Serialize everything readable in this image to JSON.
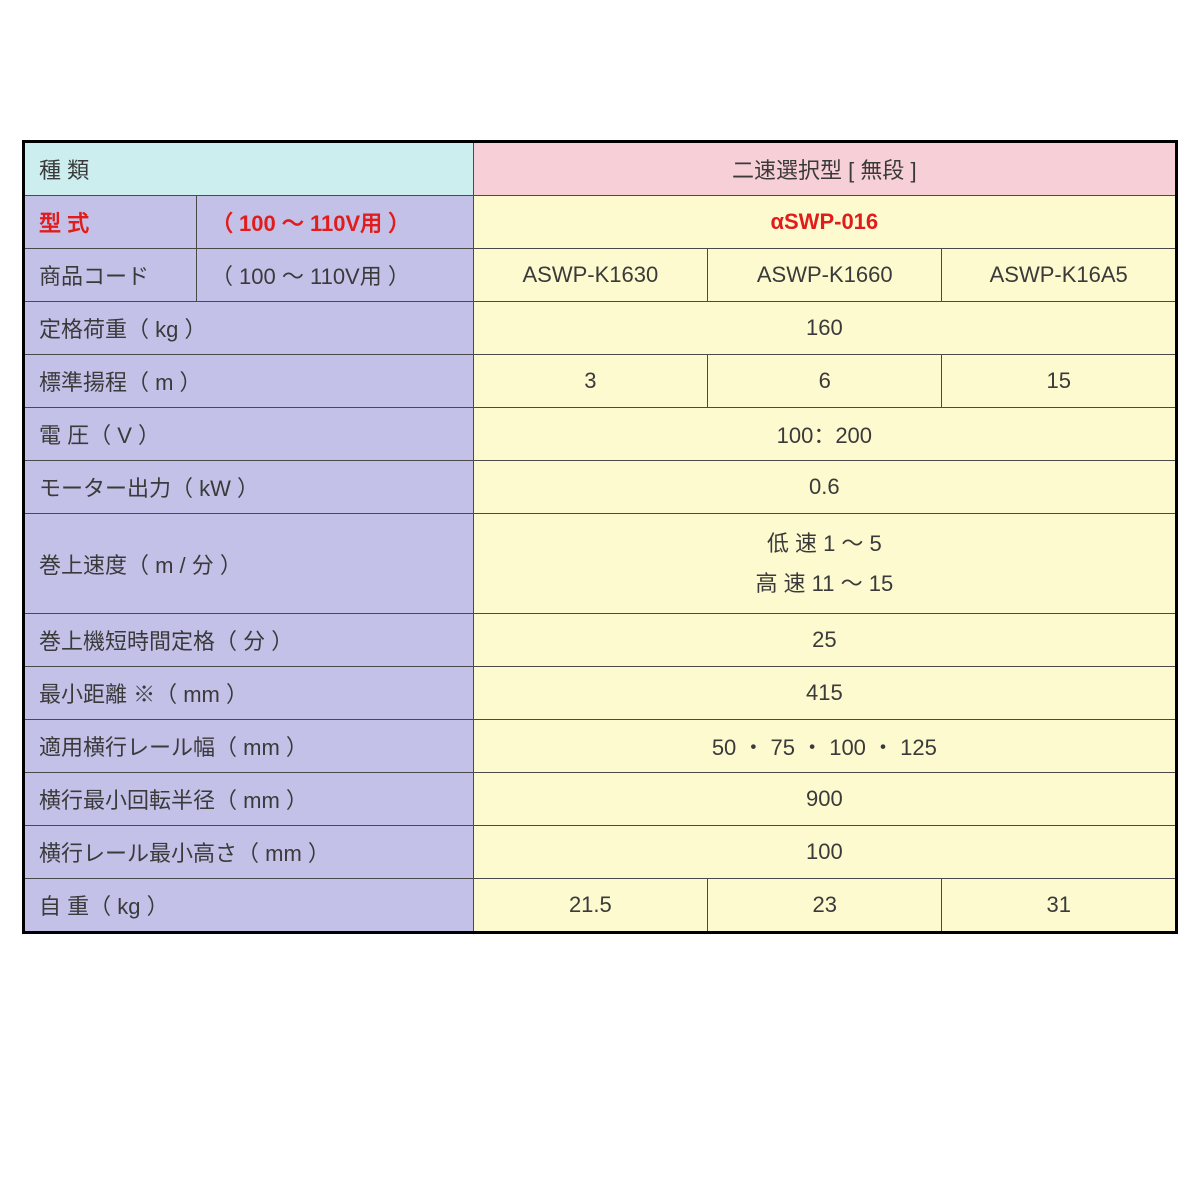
{
  "colors": {
    "hdr_left_bg": "#cdeeee",
    "hdr_right_bg": "#f7cfd7",
    "label_col_bg": "#c4c1e8",
    "value_col_bg": "#fdfacf",
    "red_text": "#e11c1c",
    "border": "#000000",
    "inner_border": "#4a4a4a",
    "text": "#3a3a3a"
  },
  "col_widths_pct": [
    15,
    24,
    20.33,
    20.33,
    20.34
  ],
  "header": {
    "type_label": "種 類",
    "type_value": "二速選択型 [ 無段 ]"
  },
  "model_row": {
    "label": "型 式",
    "note": "（ 100 ～ 110V用 ）",
    "value": "αSWP-016"
  },
  "code_row": {
    "label": "商品コード",
    "note": "（ 100 ～ 110V用 ）",
    "codes": [
      "ASWP-K1630",
      "ASWP-K1660",
      "ASWP-K16A5"
    ]
  },
  "rows": [
    {
      "label": "定格荷重（ kg ）",
      "span": true,
      "value": "160"
    },
    {
      "label": "標準揚程（ m ）",
      "span": false,
      "values": [
        "3",
        "6",
        "15"
      ]
    },
    {
      "label": "電 圧（ V ）",
      "span": true,
      "value": "100：200"
    },
    {
      "label": "モーター出力（ kW ）",
      "span": true,
      "value": "0.6"
    },
    {
      "label": "巻上速度（ m / 分 ）",
      "span": true,
      "value_lines": [
        "低 速 1 ～  5",
        "高 速 11 ～ 15"
      ]
    },
    {
      "label": "巻上機短時間定格（ 分 ）",
      "span": true,
      "value": "25"
    },
    {
      "label": "最小距離 ※（ mm ）",
      "span": true,
      "value": "415"
    },
    {
      "label": "適用横行レール幅（ mm ）",
      "span": true,
      "value": "50 ・ 75 ・ 100 ・ 125"
    },
    {
      "label": "横行最小回転半径（ mm ）",
      "span": true,
      "value": "900"
    },
    {
      "label": "横行レール最小高さ（ mm ）",
      "span": true,
      "value": "100"
    },
    {
      "label": "自 重（ kg ）",
      "span": false,
      "values": [
        "21.5",
        "23",
        "31"
      ]
    }
  ]
}
